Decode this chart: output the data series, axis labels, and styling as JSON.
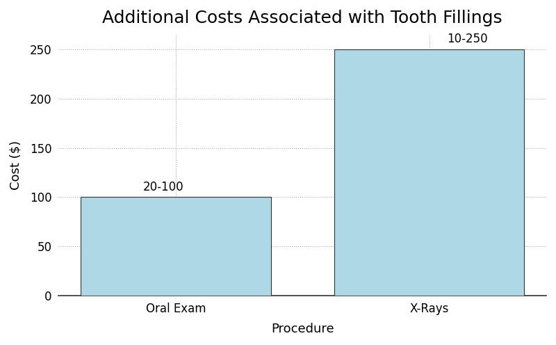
{
  "title": "Additional Costs Associated with Tooth Fillings",
  "categories": [
    "Oral Exam",
    "X-Rays"
  ],
  "values": [
    100,
    250
  ],
  "bar_labels": [
    "20-100",
    "10-250"
  ],
  "bar_color": "#add8e6",
  "bar_edgecolor": "#333333",
  "xlabel": "Procedure",
  "ylabel": "Cost ($)",
  "ylim": [
    0,
    265
  ],
  "yticks": [
    0,
    50,
    100,
    150,
    200,
    250
  ],
  "title_fontsize": 18,
  "axis_label_fontsize": 13,
  "tick_fontsize": 12,
  "bar_label_fontsize": 12,
  "grid_color": "#aaaaaa",
  "grid_linestyle": ":",
  "background_color": "#ffffff",
  "bar_width": 0.75,
  "figsize": [
    8.0,
    4.96
  ],
  "dpi": 100
}
